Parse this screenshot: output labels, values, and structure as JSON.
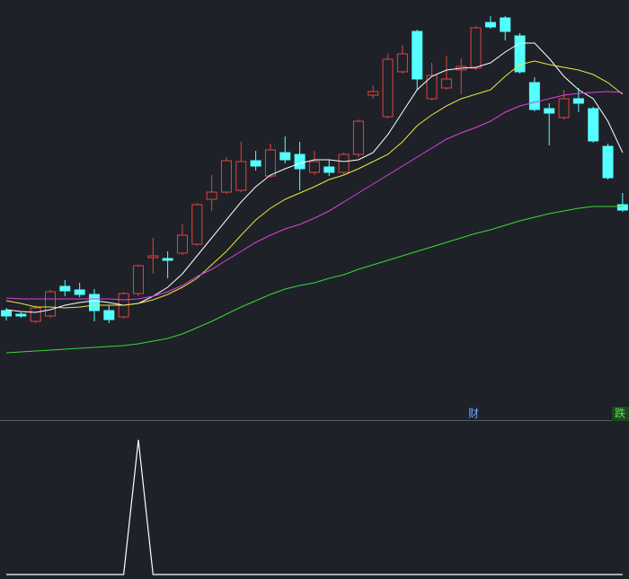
{
  "chart_data": [
    {
      "type": "candlestick",
      "ylim": [
        0,
        465
      ],
      "up_color": "#e8413c",
      "down_color": "#54ffff",
      "open": [
        119,
        115,
        107,
        113,
        146,
        142,
        137,
        119,
        112,
        138,
        178,
        177,
        183,
        193,
        243,
        251,
        253,
        286,
        269,
        295,
        293,
        273,
        279,
        273,
        293,
        359,
        335,
        385,
        430,
        355,
        367,
        387,
        389,
        440,
        445,
        425,
        373,
        344,
        334,
        355,
        344,
        302,
        237
      ],
      "high": [
        122,
        117,
        125,
        142,
        153,
        150,
        143,
        125,
        140,
        170,
        200,
        185,
        215,
        239,
        270,
        290,
        307,
        297,
        305,
        313,
        307,
        297,
        287,
        295,
        332,
        370,
        405,
        415,
        432,
        395,
        403,
        400,
        436,
        447,
        447,
        428,
        379,
        350,
        365,
        367,
        346,
        305,
        250
      ],
      "low": [
        108,
        111,
        105,
        111,
        135,
        134,
        107,
        105,
        110,
        135,
        160,
        155,
        181,
        191,
        230,
        249,
        251,
        275,
        267,
        283,
        253,
        270,
        269,
        270,
        290,
        355,
        333,
        383,
        365,
        353,
        365,
        360,
        387,
        433,
        420,
        383,
        341,
        303,
        332,
        340,
        306,
        265,
        229
      ],
      "close": [
        113,
        113,
        122,
        140,
        141,
        137,
        119,
        109,
        138,
        169,
        180,
        175,
        203,
        237,
        251,
        286,
        285,
        280,
        298,
        287,
        277,
        285,
        273,
        293,
        330,
        363,
        399,
        405,
        377,
        381,
        377,
        391,
        434,
        435,
        430,
        385,
        343,
        339,
        355,
        350,
        308,
        267,
        231
      ],
      "series": [
        {
          "color": "#ffffff",
          "values": [
            120,
            118,
            117,
            120,
            125,
            128,
            130,
            128,
            125,
            127,
            135,
            145,
            160,
            180,
            200,
            220,
            240,
            257,
            270,
            277,
            283,
            287,
            287,
            285,
            287,
            295,
            315,
            340,
            365,
            380,
            387,
            389,
            390,
            395,
            407,
            417,
            417,
            400,
            380,
            365,
            355,
            330,
            295
          ]
        },
        {
          "color": "#e8e83a",
          "values": [
            130,
            127,
            123,
            123,
            122,
            123,
            125,
            125,
            125,
            127,
            131,
            137,
            145,
            155,
            170,
            185,
            203,
            220,
            233,
            243,
            250,
            257,
            265,
            270,
            277,
            285,
            293,
            307,
            325,
            337,
            347,
            355,
            360,
            365,
            380,
            393,
            397,
            393,
            390,
            387,
            382,
            373,
            360
          ]
        },
        {
          "color": "#e040e0",
          "values": [
            133,
            132,
            132,
            132,
            132,
            132,
            132,
            132,
            131,
            132,
            135,
            140,
            147,
            157,
            165,
            175,
            185,
            195,
            203,
            210,
            215,
            222,
            230,
            240,
            250,
            260,
            270,
            280,
            290,
            300,
            310,
            317,
            323,
            330,
            340,
            347,
            351,
            355,
            359,
            361,
            362,
            363,
            362
          ]
        },
        {
          "color": "#3ad83a",
          "values": [
            72,
            73,
            74,
            75,
            76,
            77,
            78,
            79,
            80,
            82,
            85,
            88,
            93,
            100,
            107,
            115,
            123,
            130,
            137,
            143,
            147,
            150,
            155,
            159,
            165,
            170,
            175,
            180,
            185,
            190,
            195,
            200,
            205,
            209,
            214,
            219,
            223,
            227,
            230,
            233,
            235,
            235,
            235
          ]
        }
      ],
      "annotations": [
        "财",
        "跌"
      ]
    },
    {
      "type": "line",
      "ylim": [
        0,
        1
      ],
      "color": "#ffffff",
      "values": [
        0,
        0,
        0,
        0,
        0,
        0,
        0,
        0,
        0,
        1,
        0,
        0,
        0,
        0,
        0,
        0,
        0,
        0,
        0,
        0,
        0,
        0,
        0,
        0,
        0,
        0,
        0,
        0,
        0,
        0,
        0,
        0,
        0,
        0,
        0,
        0,
        0,
        0,
        0,
        0,
        0,
        0,
        0
      ]
    }
  ]
}
